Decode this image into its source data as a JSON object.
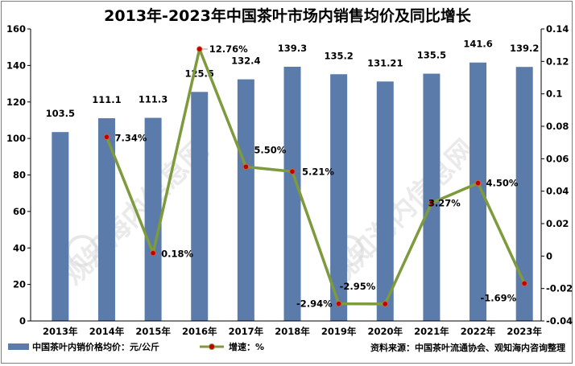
{
  "chart_data": {
    "type": "bar",
    "title": "2013年-2023年中国茶叶市场内销售均价及同比增长",
    "categories": [
      "2013年",
      "2014年",
      "2015年",
      "2016年",
      "2017年",
      "2018年",
      "2019年",
      "2020年",
      "2021年",
      "2022年",
      "2023年"
    ],
    "series": [
      {
        "name": "中国茶叶内销价格均价：元/公斤",
        "type": "bar",
        "axis": "left",
        "color": "#5b7bab",
        "values": [
          103.5,
          111.1,
          111.3,
          125.5,
          132.4,
          139.3,
          135.2,
          131.21,
          135.5,
          141.6,
          139.2
        ],
        "labels": [
          "103.5",
          "111.1",
          "111.3",
          "125.5",
          "132.4",
          "139.3",
          "135.2",
          "131.21",
          "135.5",
          "141.6",
          "139.2"
        ]
      },
      {
        "name": "增速：%",
        "type": "line",
        "axis": "right",
        "color": "#7d9a3c",
        "marker_color": "#c00000",
        "values": [
          null,
          0.0734,
          0.0018,
          0.1276,
          0.055,
          0.0521,
          -0.0294,
          -0.0295,
          0.0327,
          0.045,
          -0.0169
        ],
        "labels": [
          "",
          "7.34%",
          "0.18%",
          "12.76%",
          "5.50%",
          "5.21%",
          "-2.94%",
          "-2.95%",
          "3.27%",
          "4.50%",
          "-1.69%"
        ]
      }
    ],
    "y_left": {
      "min": 0,
      "max": 160,
      "step": 20,
      "ticks": [
        "0",
        "20",
        "40",
        "60",
        "80",
        "100",
        "120",
        "140",
        "160"
      ]
    },
    "y_right": {
      "min": -0.04,
      "max": 0.14,
      "step": 0.02,
      "ticks": [
        "-0.04",
        "-0.02",
        "0",
        "0.02",
        "0.04",
        "0.06",
        "0.08",
        "0.1",
        "0.12",
        "0.14"
      ]
    },
    "grid": false,
    "legend": "bottom-left",
    "source": "资料来源：中国茶叶流通协会、观知海内咨询整理",
    "watermark": "观知海内信息网"
  }
}
